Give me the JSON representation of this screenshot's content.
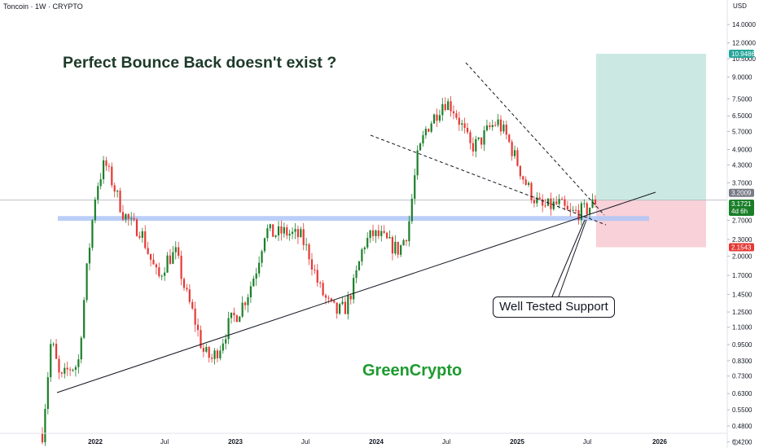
{
  "header": {
    "symbol_title": "Toncoin · 1W · CRYPTO",
    "currency": "USD"
  },
  "annotations": {
    "headline": "Perfect Bounce Back doesn't exist ?",
    "brand": "GreenCrypto",
    "callout": "Well Tested Support"
  },
  "colors": {
    "bull": "#26a69a",
    "bull_green": "#1b7f2a",
    "bear": "#e53935",
    "support_zone": "#aec6f7",
    "target_zone": "#cbe9e2",
    "stop_zone": "#f9d1d8",
    "brand_green": "#1d9a2f"
  },
  "chart_data": {
    "type": "candlestick",
    "title": "Toncoin · 1W · CRYPTO",
    "ylabel": "USD",
    "y_scale": "log",
    "ylim": [
      0.39,
      16.0
    ],
    "x_ticks": [
      "2022",
      "Jul",
      "2023",
      "Jul",
      "2024",
      "Jul",
      "2025",
      "Jul",
      "2026"
    ],
    "x_tick_bold": [
      true,
      false,
      true,
      false,
      true,
      false,
      true,
      false,
      true
    ],
    "y_ticks": [
      "14.0000",
      "12.0000",
      "10.5000",
      "9.0000",
      "7.5000",
      "6.5000",
      "5.7000",
      "4.9000",
      "4.3000",
      "3.7000",
      "2.7000",
      "2.3000",
      "2.0000",
      "1.7000",
      "1.4500",
      "1.2500",
      "1.1000",
      "0.9500",
      "0.8300",
      "0.7300",
      "0.6300",
      "0.5500",
      "0.4800",
      "0.4200"
    ],
    "price_badges": [
      {
        "label": "10.9486",
        "color": "#26a69a"
      },
      {
        "label": "3.2009",
        "color": "#787b86"
      },
      {
        "label": "3.1721",
        "sub": "4d 6h",
        "color": "#1b7f2a"
      },
      {
        "label": "2.1543",
        "color": "#e53935"
      }
    ],
    "current_price": 3.1721,
    "support_zone": {
      "low": 2.69,
      "high": 2.8
    },
    "long_position": {
      "entry": 3.2009,
      "target": 10.9486,
      "stop": 2.1543
    },
    "path_points": [
      [
        0,
        0.45
      ],
      [
        1,
        1.0
      ],
      [
        2,
        0.7
      ],
      [
        3,
        0.78
      ],
      [
        4,
        0.8
      ],
      [
        5,
        1.8
      ],
      [
        6,
        3.5
      ],
      [
        7,
        4.4
      ],
      [
        8,
        3.6
      ],
      [
        9,
        2.9
      ],
      [
        10,
        2.6
      ],
      [
        11,
        2.5
      ],
      [
        12,
        2.0
      ],
      [
        13,
        1.65
      ],
      [
        14,
        1.95
      ],
      [
        15,
        2.05
      ],
      [
        16,
        1.5
      ],
      [
        17,
        1.2
      ],
      [
        18,
        0.9
      ],
      [
        19,
        0.84
      ],
      [
        20,
        0.95
      ],
      [
        21,
        1.15
      ],
      [
        22,
        1.25
      ],
      [
        23,
        1.45
      ],
      [
        24,
        1.8
      ],
      [
        25,
        2.5
      ],
      [
        26,
        2.4
      ],
      [
        27,
        2.45
      ],
      [
        28,
        2.4
      ],
      [
        29,
        2.35
      ],
      [
        30,
        2.0
      ],
      [
        31,
        1.55
      ],
      [
        32,
        1.35
      ],
      [
        33,
        1.25
      ],
      [
        34,
        1.3
      ],
      [
        35,
        1.6
      ],
      [
        36,
        2.2
      ],
      [
        37,
        2.4
      ],
      [
        38,
        2.35
      ],
      [
        39,
        2.2
      ],
      [
        40,
        2.1
      ],
      [
        41,
        2.5
      ],
      [
        42,
        4.5
      ],
      [
        43,
        5.8
      ],
      [
        44,
        6.5
      ],
      [
        45,
        7.4
      ],
      [
        46,
        7.0
      ],
      [
        47,
        6.0
      ],
      [
        48,
        5.0
      ],
      [
        49,
        5.2
      ],
      [
        50,
        5.8
      ],
      [
        51,
        6.2
      ],
      [
        52,
        5.5
      ],
      [
        53,
        4.6
      ],
      [
        54,
        3.8
      ],
      [
        55,
        3.3
      ],
      [
        56,
        3.0
      ],
      [
        57,
        3.05
      ],
      [
        58,
        3.1
      ],
      [
        59,
        2.85
      ],
      [
        60,
        2.9
      ],
      [
        61,
        2.95
      ],
      [
        62,
        3.17
      ]
    ],
    "path_x_range": [
      "2021-10",
      "2025-07"
    ]
  }
}
